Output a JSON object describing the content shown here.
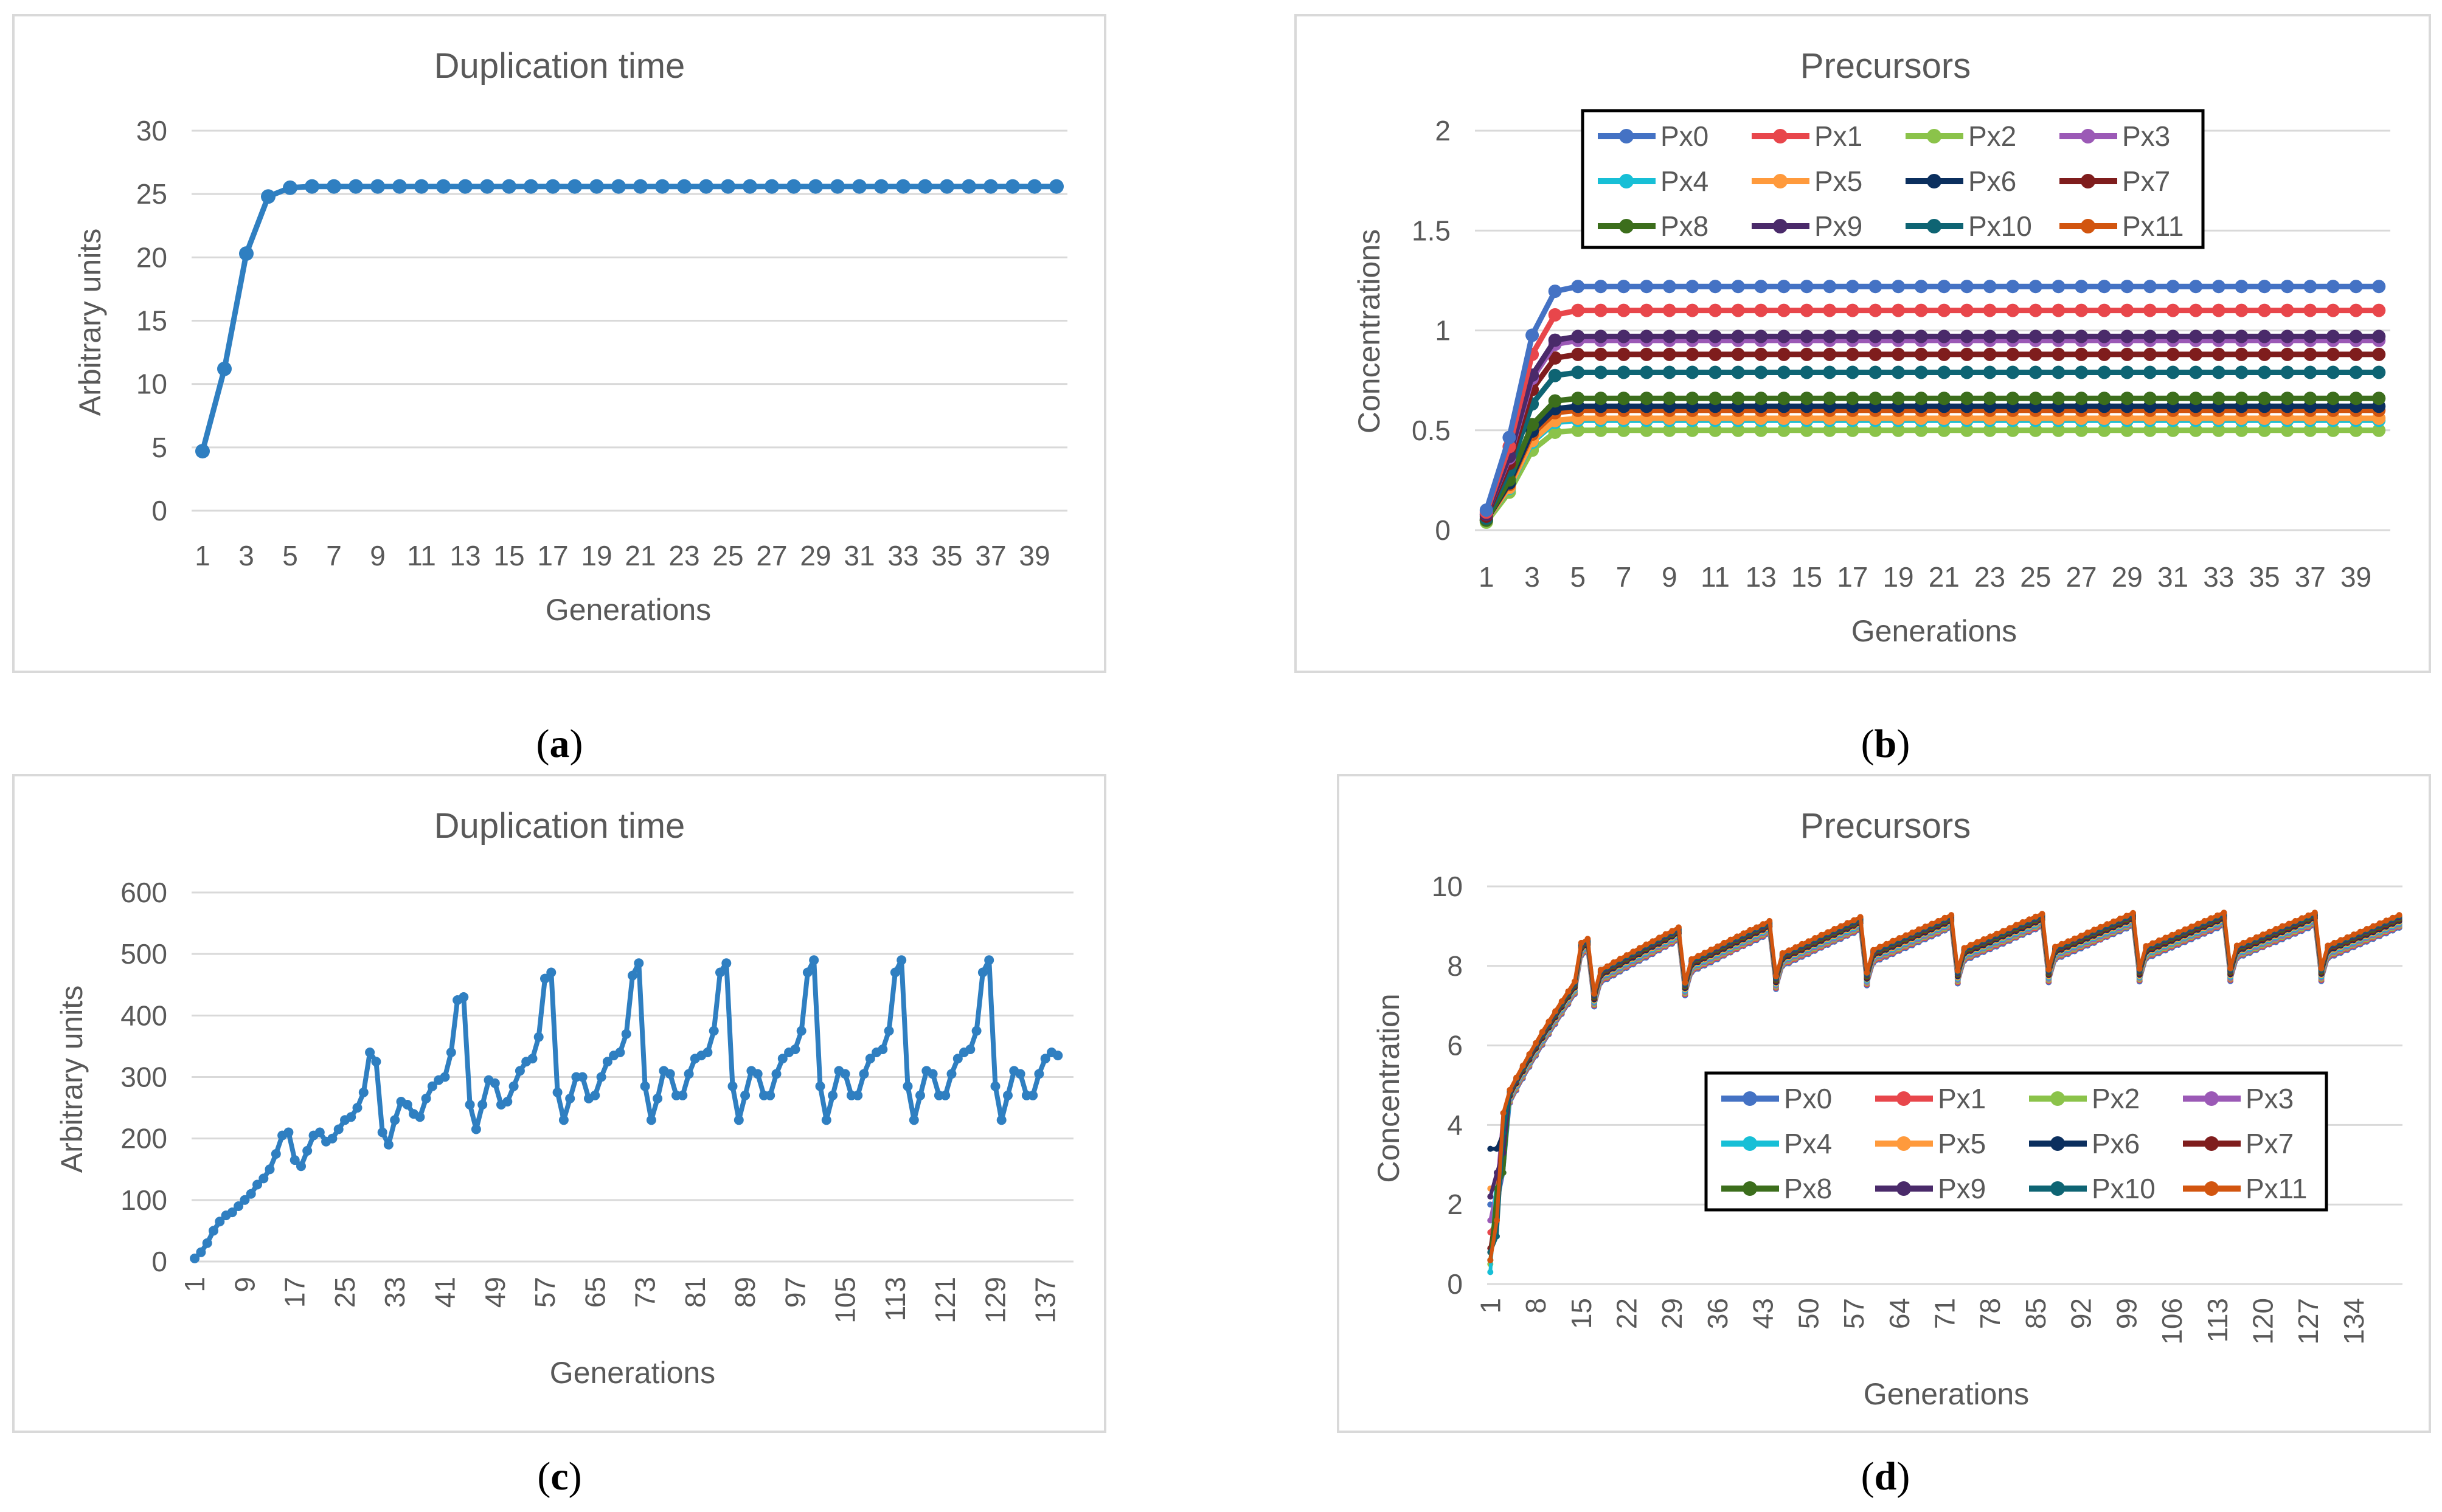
{
  "captions": [
    "a",
    "b",
    "c",
    "d"
  ],
  "colors": {
    "Px0": "#4472c4",
    "Px1": "#e8464b",
    "Px2": "#8bc34a",
    "Px3": "#9b59b6",
    "Px4": "#17bfd6",
    "Px5": "#ff9a3c",
    "Px6": "#0b2f5e",
    "Px7": "#7f1d1d",
    "Px8": "#3c6e1c",
    "Px9": "#4a2a6a",
    "Px10": "#0e6473",
    "Px11": "#d2550f",
    "single": "#2f7fc1"
  },
  "chart_data": [
    {
      "panel": "a",
      "type": "line",
      "title": "Duplication time",
      "xlabel": "Generations",
      "ylabel": "Arbitrary units",
      "ylim": [
        0,
        30
      ],
      "yticks": [
        0,
        5,
        10,
        15,
        20,
        25,
        30
      ],
      "x": [
        1,
        2,
        3,
        4,
        5,
        6,
        7,
        8,
        9,
        10,
        11,
        12,
        13,
        14,
        15,
        16,
        17,
        18,
        19,
        20,
        21,
        22,
        23,
        24,
        25,
        26,
        27,
        28,
        29,
        30,
        31,
        32,
        33,
        34,
        35,
        36,
        37,
        38,
        39,
        40
      ],
      "xticklabels": [
        "1",
        "3",
        "5",
        "7",
        "9",
        "11",
        "13",
        "15",
        "17",
        "19",
        "21",
        "23",
        "25",
        "27",
        "29",
        "31",
        "33",
        "35",
        "37",
        "39"
      ],
      "grid": true,
      "series": [
        {
          "values": [
            4.7,
            11.2,
            20.3,
            24.8,
            25.5,
            25.6,
            25.6,
            25.6,
            25.6,
            25.6,
            25.6,
            25.6,
            25.6,
            25.6,
            25.6,
            25.6,
            25.6,
            25.6,
            25.6,
            25.6,
            25.6,
            25.6,
            25.6,
            25.6,
            25.6,
            25.6,
            25.6,
            25.6,
            25.6,
            25.6,
            25.6,
            25.6,
            25.6,
            25.6,
            25.6,
            25.6,
            25.6,
            25.6,
            25.6,
            25.6
          ]
        }
      ]
    },
    {
      "panel": "b",
      "type": "line",
      "title": "Precursors",
      "xlabel": "Generations",
      "ylabel": "Concentrations",
      "ylim": [
        0,
        2
      ],
      "yticks": [
        "0",
        "0.5",
        "1",
        "1.5",
        "2"
      ],
      "x": [
        1,
        2,
        3,
        4,
        5,
        6,
        7,
        8,
        9,
        10,
        11,
        12,
        13,
        14,
        15,
        16,
        17,
        18,
        19,
        20,
        21,
        22,
        23,
        24,
        25,
        26,
        27,
        28,
        29,
        30,
        31,
        32,
        33,
        34,
        35,
        36,
        37,
        38,
        39,
        40
      ],
      "xticklabels": [
        "1",
        "3",
        "5",
        "7",
        "9",
        "11",
        "13",
        "15",
        "17",
        "19",
        "21",
        "23",
        "25",
        "27",
        "29",
        "31",
        "33",
        "35",
        "37",
        "39"
      ],
      "legend": "top",
      "grid": true,
      "series": [
        {
          "name": "Px0",
          "start": 0.1,
          "final": 1.22
        },
        {
          "name": "Px1",
          "start": 0.09,
          "final": 1.1
        },
        {
          "name": "Px2",
          "start": 0.04,
          "final": 0.5
        },
        {
          "name": "Px3",
          "start": 0.08,
          "final": 0.95
        },
        {
          "name": "Px4",
          "start": 0.05,
          "final": 0.55
        },
        {
          "name": "Px5",
          "start": 0.05,
          "final": 0.56
        },
        {
          "name": "Px6",
          "start": 0.05,
          "final": 0.62
        },
        {
          "name": "Px7",
          "start": 0.07,
          "final": 0.88
        },
        {
          "name": "Px8",
          "start": 0.05,
          "final": 0.66
        },
        {
          "name": "Px9",
          "start": 0.08,
          "final": 0.97
        },
        {
          "name": "Px10",
          "start": 0.06,
          "final": 0.79
        },
        {
          "name": "Px11",
          "start": 0.05,
          "final": 0.6
        }
      ]
    },
    {
      "panel": "c",
      "type": "line",
      "title": "Duplication time",
      "xlabel": "Generations",
      "ylabel": "Arbitrary units",
      "ylim": [
        0,
        600
      ],
      "yticks": [
        0,
        100,
        200,
        300,
        400,
        500,
        600
      ],
      "xticklabels": [
        "1",
        "9",
        "17",
        "25",
        "33",
        "41",
        "49",
        "57",
        "65",
        "73",
        "81",
        "89",
        "97",
        "105",
        "113",
        "121",
        "129",
        "137"
      ],
      "xtick_step": 8,
      "grid": true,
      "series": [
        {
          "values": [
            5,
            15,
            30,
            50,
            65,
            75,
            80,
            90,
            100,
            110,
            125,
            135,
            150,
            175,
            205,
            210,
            165,
            155,
            180,
            205,
            210,
            195,
            200,
            215,
            230,
            235,
            250,
            275,
            340,
            325,
            210,
            190,
            230,
            260,
            255,
            240,
            235,
            265,
            285,
            295,
            300,
            340,
            425,
            430,
            255,
            215,
            255,
            295,
            290,
            255,
            260,
            285,
            310,
            325,
            330,
            365,
            460,
            470,
            275,
            230,
            265,
            300,
            300,
            265,
            270,
            300,
            325,
            335,
            340,
            370,
            465,
            485,
            285,
            230,
            265,
            310,
            305,
            270,
            270,
            305,
            330,
            335,
            340,
            375,
            470,
            485,
            285,
            230,
            270,
            310,
            305,
            270,
            270,
            305,
            330,
            340,
            345,
            375,
            470,
            490,
            285,
            230,
            270,
            310,
            305,
            270,
            270,
            305,
            330,
            340,
            345,
            375,
            470,
            490,
            285,
            230,
            270,
            310,
            305,
            270,
            270,
            305,
            330,
            340,
            345,
            375,
            470,
            490,
            285,
            230,
            270,
            310,
            305,
            270,
            270,
            305,
            330,
            340,
            335
          ]
        }
      ]
    },
    {
      "panel": "d",
      "type": "line",
      "title": "Precursors",
      "xlabel": "Generations",
      "ylabel": "Concentration",
      "ylim": [
        0,
        10
      ],
      "yticks": [
        0,
        2,
        4,
        6,
        8,
        10
      ],
      "xticklabels": [
        "1",
        "8",
        "15",
        "22",
        "29",
        "36",
        "43",
        "50",
        "57",
        "64",
        "71",
        "78",
        "85",
        "92",
        "99",
        "106",
        "113",
        "120",
        "127",
        "134"
      ],
      "xtick_step": 7,
      "n_points": 141,
      "legend": "center-right",
      "grid": true,
      "series": [
        {
          "name": "Px0",
          "start": 2.0
        },
        {
          "name": "Px1",
          "start": 1.3
        },
        {
          "name": "Px2",
          "start": 0.5
        },
        {
          "name": "Px3",
          "start": 1.6
        },
        {
          "name": "Px4",
          "start": 0.3
        },
        {
          "name": "Px5",
          "start": 2.4
        },
        {
          "name": "Px6",
          "start": 3.4
        },
        {
          "name": "Px7",
          "start": 0.9
        },
        {
          "name": "Px8",
          "start": 0.6
        },
        {
          "name": "Px9",
          "start": 2.2
        },
        {
          "name": "Px10",
          "start": 0.8
        },
        {
          "name": "Px11",
          "start": 0.6
        }
      ]
    }
  ]
}
